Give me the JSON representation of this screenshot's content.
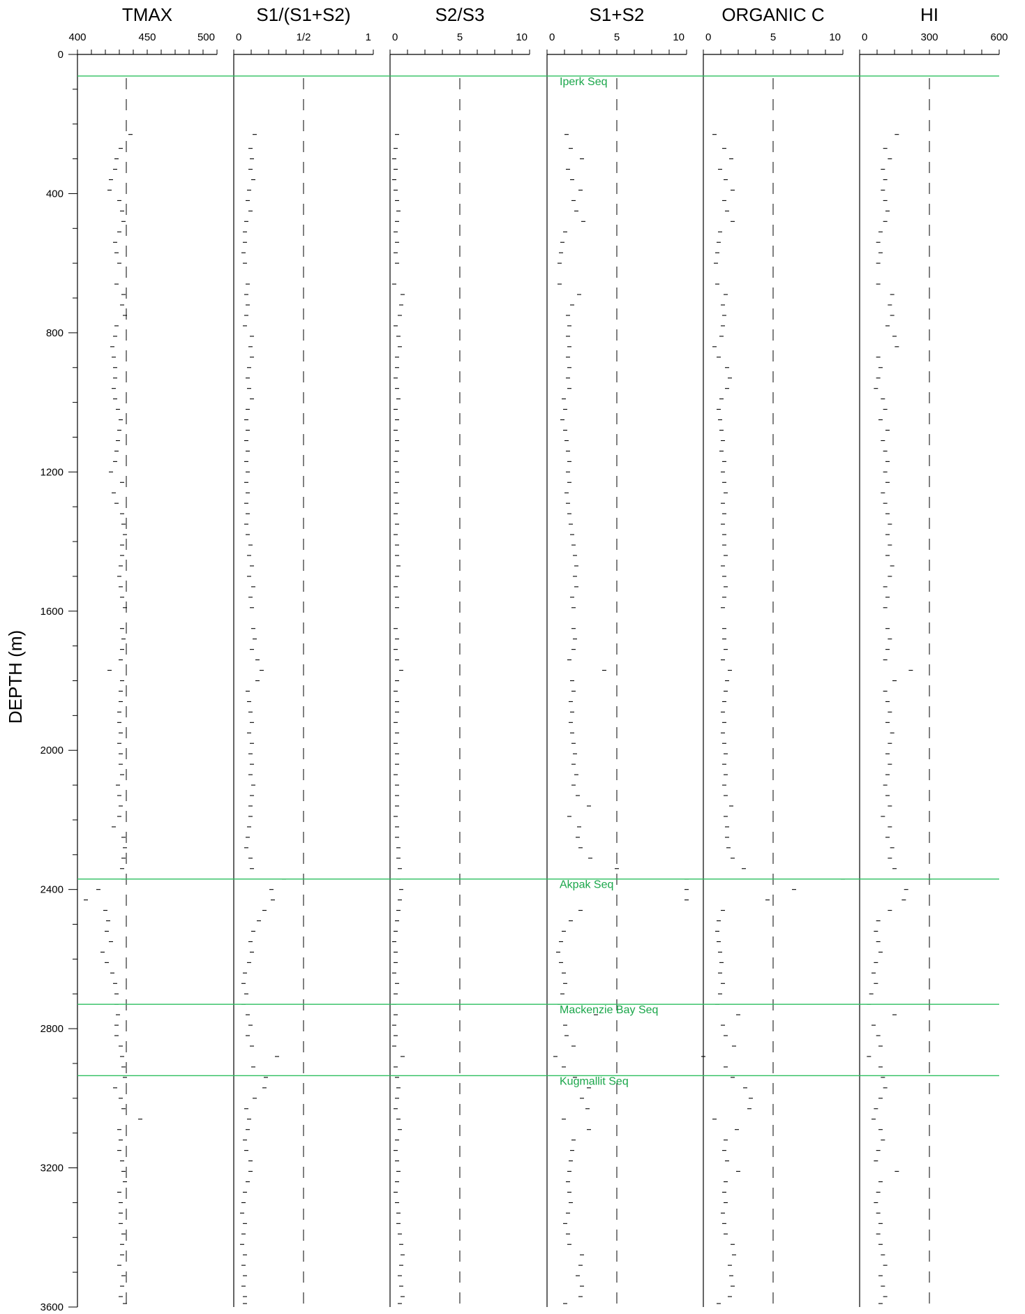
{
  "chart_data": {
    "type": "scatter",
    "ylabel": "DEPTH (m)",
    "ylim": [
      0,
      3600
    ],
    "y_ticks": [
      {
        "value": 0,
        "label": "0"
      },
      {
        "value": 400,
        "label": "400"
      },
      {
        "value": 800,
        "label": "800"
      },
      {
        "value": 1200,
        "label": "1200"
      },
      {
        "value": 1600,
        "label": "1600"
      },
      {
        "value": 2000,
        "label": "2000"
      },
      {
        "value": 2400,
        "label": "2400"
      },
      {
        "value": 2800,
        "label": "2800"
      },
      {
        "value": 3200,
        "label": "3200"
      },
      {
        "value": 3600,
        "label": "3600"
      }
    ],
    "boundary_color": "#2dbf5f",
    "label_color": "#1aa64a",
    "marker_color": "#000000",
    "boundaries": [
      {
        "depth": 62,
        "label": "Iperk Seq"
      },
      {
        "depth": 2370,
        "label": "Akpak Seq"
      },
      {
        "depth": 2730,
        "label": "Mackenzie Bay Seq"
      },
      {
        "depth": 2935,
        "label": "Kugmallit Seq"
      }
    ],
    "depths": [
      230,
      270,
      300,
      330,
      360,
      390,
      420,
      450,
      480,
      510,
      540,
      570,
      600,
      660,
      690,
      720,
      750,
      780,
      810,
      840,
      870,
      900,
      930,
      960,
      990,
      1020,
      1050,
      1080,
      1110,
      1140,
      1170,
      1200,
      1230,
      1260,
      1290,
      1320,
      1350,
      1380,
      1410,
      1440,
      1470,
      1500,
      1530,
      1560,
      1590,
      1650,
      1680,
      1710,
      1740,
      1770,
      1800,
      1830,
      1860,
      1890,
      1920,
      1950,
      1980,
      2010,
      2040,
      2070,
      2100,
      2130,
      2160,
      2190,
      2220,
      2250,
      2280,
      2310,
      2340,
      2370,
      2400,
      2430,
      2460,
      2490,
      2520,
      2550,
      2580,
      2610,
      2640,
      2670,
      2700,
      2730,
      2760,
      2790,
      2820,
      2850,
      2880,
      2910,
      2940,
      2970,
      3000,
      3030,
      3060,
      3090,
      3120,
      3150,
      3180,
      3210,
      3240,
      3270,
      3300,
      3330,
      3360,
      3390,
      3420,
      3450,
      3480,
      3510,
      3540,
      3570,
      3590
    ],
    "tracks": [
      {
        "name": "TMAX",
        "xlim": [
          400,
          500
        ],
        "ticks": [
          400,
          450,
          500
        ],
        "tick_labels": [
          "400",
          "450",
          "500"
        ],
        "minor_step": 10,
        "ref_lines": [
          435
        ],
        "values": [
          438,
          431,
          428,
          427,
          424,
          423,
          430,
          432,
          433,
          430,
          427,
          428,
          430,
          428,
          433,
          432,
          434,
          428,
          427,
          425,
          426,
          427,
          427,
          426,
          427,
          429,
          431,
          430,
          429,
          428,
          427,
          424,
          432,
          426,
          428,
          432,
          433,
          434,
          432,
          432,
          431,
          430,
          431,
          432,
          434,
          432,
          433,
          432,
          431,
          423,
          432,
          431,
          431,
          430,
          430,
          431,
          430,
          431,
          431,
          432,
          429,
          430,
          431,
          430,
          426,
          433,
          434,
          433,
          432,
          433,
          415,
          406,
          420,
          422,
          421,
          424,
          418,
          421,
          425,
          427,
          428,
          428,
          429,
          428,
          428,
          431,
          432,
          433,
          434,
          427,
          431,
          433,
          445,
          430,
          431,
          430,
          432,
          433,
          434,
          430,
          431,
          431,
          431,
          433,
          432,
          432,
          430,
          433,
          432,
          431,
          434
        ]
      },
      {
        "name": "S1/(S1+S2)",
        "xlim": [
          0,
          1
        ],
        "ticks": [
          0,
          0.5,
          1
        ],
        "tick_labels": [
          "0",
          "1/2",
          "1"
        ],
        "minor_step": 0.125,
        "ref_lines": [
          0.5
        ],
        "values": [
          0.15,
          0.12,
          0.13,
          0.12,
          0.14,
          0.11,
          0.1,
          0.12,
          0.09,
          0.08,
          0.08,
          0.07,
          0.08,
          0.1,
          0.09,
          0.1,
          0.09,
          0.08,
          0.13,
          0.12,
          0.13,
          0.11,
          0.1,
          0.11,
          0.13,
          0.1,
          0.09,
          0.1,
          0.09,
          0.1,
          0.09,
          0.1,
          0.09,
          0.1,
          0.09,
          0.1,
          0.09,
          0.1,
          0.12,
          0.11,
          0.13,
          0.11,
          0.14,
          0.12,
          0.13,
          0.14,
          0.15,
          0.13,
          0.17,
          0.2,
          0.17,
          0.1,
          0.11,
          0.12,
          0.13,
          0.11,
          0.13,
          0.12,
          0.13,
          0.12,
          0.14,
          0.13,
          0.12,
          0.12,
          0.11,
          0.1,
          0.09,
          0.12,
          0.13,
          0.36,
          0.27,
          0.28,
          0.22,
          0.18,
          0.14,
          0.12,
          0.13,
          0.11,
          0.08,
          0.07,
          0.09,
          0.07,
          0.1,
          0.12,
          0.1,
          0.13,
          0.31,
          0.14,
          0.23,
          0.22,
          0.15,
          0.09,
          0.11,
          0.1,
          0.08,
          0.09,
          0.12,
          0.12,
          0.1,
          0.08,
          0.07,
          0.06,
          0.08,
          0.07,
          0.06,
          0.08,
          0.07,
          0.08,
          0.07,
          0.08,
          0.08
        ]
      },
      {
        "name": "S2/S3",
        "xlim": [
          0,
          10
        ],
        "ticks": [
          0,
          5,
          10
        ],
        "tick_labels": [
          "0",
          "5",
          "10"
        ],
        "minor_step": 1.25,
        "ref_lines": [
          5
        ],
        "values": [
          0.5,
          0.4,
          0.3,
          0.4,
          0.3,
          0.4,
          0.5,
          0.6,
          0.5,
          0.4,
          0.5,
          0.4,
          0.5,
          0.3,
          0.9,
          0.8,
          0.7,
          0.4,
          0.6,
          0.7,
          0.5,
          0.5,
          0.4,
          0.5,
          0.6,
          0.4,
          0.5,
          0.4,
          0.5,
          0.5,
          0.4,
          0.5,
          0.5,
          0.4,
          0.5,
          0.4,
          0.5,
          0.4,
          0.5,
          0.5,
          0.6,
          0.5,
          0.4,
          0.5,
          0.5,
          0.4,
          0.5,
          0.4,
          0.5,
          0.8,
          0.5,
          0.4,
          0.5,
          0.5,
          0.4,
          0.5,
          0.4,
          0.5,
          0.5,
          0.4,
          0.5,
          0.5,
          0.5,
          0.4,
          0.5,
          0.5,
          0.6,
          0.6,
          0.7,
          0.6,
          0.8,
          0.7,
          0.6,
          0.5,
          0.4,
          0.3,
          0.4,
          0.4,
          0.3,
          0.5,
          0.4,
          0.3,
          0.4,
          0.3,
          0.4,
          0.3,
          0.9,
          0.4,
          0.5,
          0.6,
          0.5,
          0.4,
          0.6,
          0.7,
          0.5,
          0.4,
          0.5,
          0.6,
          0.5,
          0.4,
          0.5,
          0.6,
          0.6,
          0.7,
          0.8,
          0.9,
          0.8,
          0.7,
          0.8,
          0.9,
          0.7
        ]
      },
      {
        "name": "S1+S2",
        "xlim": [
          0,
          10
        ],
        "ticks": [
          0,
          5,
          10
        ],
        "tick_labels": [
          "0",
          "5",
          "10"
        ],
        "minor_step": 1.25,
        "ref_lines": [
          5
        ],
        "values": [
          1.4,
          1.7,
          2.5,
          1.5,
          1.8,
          2.4,
          1.9,
          2.1,
          2.6,
          1.3,
          1.1,
          1,
          0.9,
          0.9,
          2.3,
          1.8,
          1.5,
          1.6,
          1.5,
          1.6,
          1.5,
          1.6,
          1.5,
          1.6,
          1.2,
          1.3,
          1.1,
          1.3,
          1.4,
          1.5,
          1.6,
          1.5,
          1.6,
          1.4,
          1.5,
          1.6,
          1.7,
          1.8,
          1.9,
          2,
          2.1,
          2,
          2.1,
          1.8,
          1.9,
          1.9,
          2,
          1.9,
          1.6,
          4.1,
          1.8,
          1.9,
          1.7,
          1.8,
          1.7,
          1.8,
          1.9,
          2,
          1.9,
          2.1,
          1.9,
          2.2,
          3,
          1.6,
          2.3,
          2.2,
          2.4,
          3.1,
          5,
          10,
          10,
          10,
          2.4,
          1.7,
          1.2,
          1,
          0.8,
          1,
          1.2,
          1.3,
          1.1,
          0.9,
          3.5,
          1.3,
          1.4,
          1.9,
          0.6,
          1.2,
          2,
          3,
          2.5,
          2.9,
          1.2,
          3,
          1.9,
          1.8,
          1.7,
          1.6,
          1.5,
          1.6,
          1.7,
          1.5,
          1.3,
          1.5,
          1.6,
          2.5,
          2.4,
          2.2,
          2.5,
          2.4,
          1.3
        ]
      },
      {
        "name": "ORGANIC C",
        "xlim": [
          0,
          10
        ],
        "ticks": [
          0,
          5,
          10
        ],
        "tick_labels": [
          "0",
          "5",
          "10"
        ],
        "minor_step": 1.25,
        "ref_lines": [
          5
        ],
        "values": [
          0.8,
          1.5,
          2,
          1.2,
          1.6,
          2.1,
          1.5,
          1.7,
          2.1,
          1.2,
          1.1,
          1,
          0.9,
          1,
          1.6,
          1.4,
          1.5,
          1.4,
          1.3,
          0.8,
          1.1,
          1.7,
          1.9,
          1.7,
          1.3,
          1.1,
          1.2,
          1.3,
          1.4,
          1.3,
          1.5,
          1.4,
          1.5,
          1.6,
          1.4,
          1.5,
          1.4,
          1.5,
          1.5,
          1.6,
          1.4,
          1.5,
          1.6,
          1.5,
          1.4,
          1.5,
          1.5,
          1.6,
          1.4,
          1.9,
          1.7,
          1.6,
          1.5,
          1.4,
          1.5,
          1.4,
          1.5,
          1.6,
          1.5,
          1.6,
          1.5,
          1.6,
          2,
          1.6,
          1.7,
          1.7,
          1.8,
          2.1,
          2.9,
          10,
          6.5,
          4.6,
          1.4,
          1.1,
          1,
          1.1,
          1.2,
          1.3,
          1.2,
          1.4,
          1.2,
          1,
          2.5,
          1.4,
          1.6,
          2.2,
          0,
          1.6,
          2.1,
          3,
          3.4,
          3.3,
          0.8,
          2.4,
          1.6,
          1.5,
          1.7,
          2.5,
          1.6,
          1.5,
          1.6,
          1.4,
          1.5,
          1.6,
          2.1,
          2.2,
          1.9,
          2,
          2.1,
          1.9,
          1.1
        ]
      },
      {
        "name": "HI",
        "xlim": [
          0,
          600
        ],
        "ticks": [
          0,
          300,
          600
        ],
        "tick_labels": [
          "0",
          "300",
          "600"
        ],
        "minor_step": 75,
        "ref_lines": [
          300
        ],
        "values": [
          160,
          110,
          130,
          100,
          110,
          100,
          110,
          120,
          110,
          90,
          80,
          90,
          80,
          80,
          140,
          130,
          140,
          120,
          150,
          160,
          80,
          90,
          80,
          70,
          100,
          110,
          90,
          120,
          100,
          110,
          120,
          110,
          120,
          100,
          110,
          120,
          130,
          120,
          130,
          120,
          140,
          130,
          110,
          120,
          110,
          120,
          130,
          120,
          110,
          220,
          150,
          110,
          120,
          130,
          120,
          140,
          130,
          120,
          130,
          120,
          110,
          120,
          130,
          100,
          130,
          120,
          140,
          130,
          150,
          300,
          200,
          190,
          130,
          80,
          70,
          80,
          90,
          70,
          60,
          70,
          50,
          40,
          150,
          60,
          80,
          90,
          40,
          90,
          100,
          110,
          90,
          70,
          60,
          90,
          100,
          80,
          70,
          160,
          90,
          80,
          70,
          80,
          90,
          80,
          90,
          100,
          110,
          90,
          100,
          110,
          90
        ]
      }
    ]
  }
}
